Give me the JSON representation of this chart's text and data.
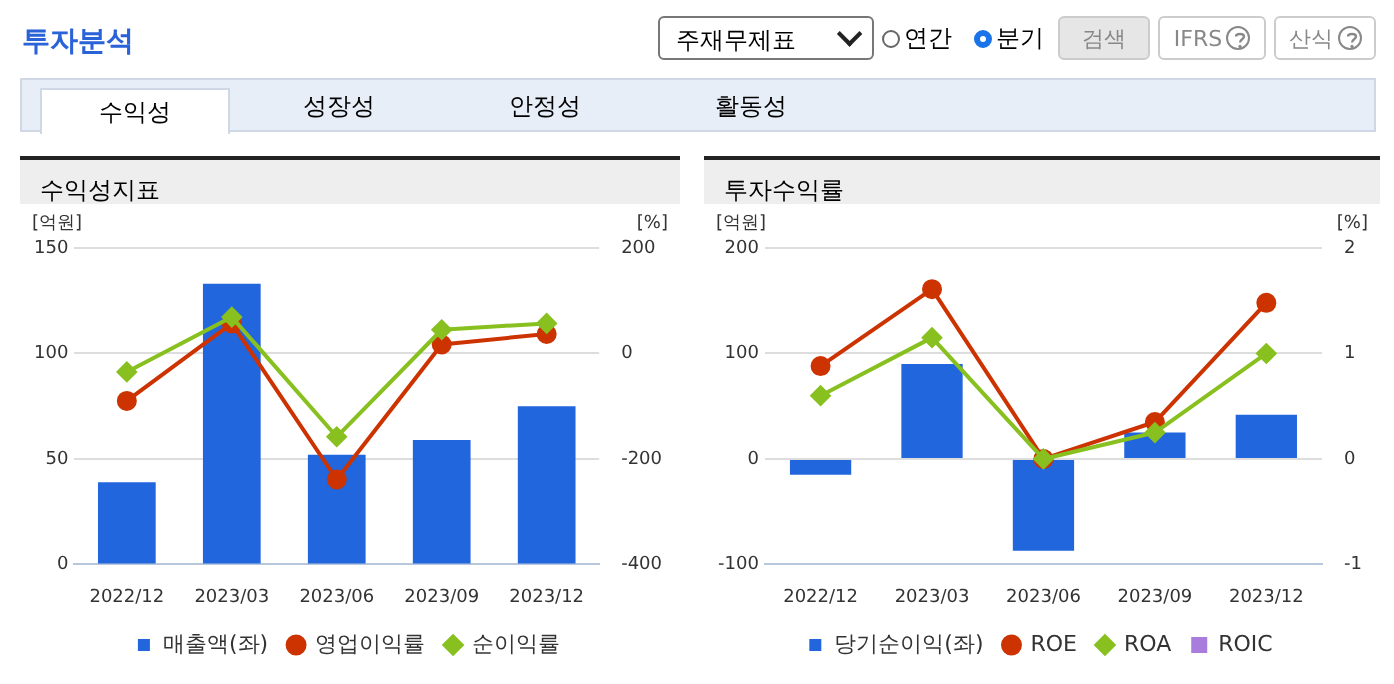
{
  "chart_data": [
    {
      "type": "other",
      "title": "투자분석",
      "annotations": [
        "주재무제표",
        "연간",
        "분기",
        "검색",
        "IFRS",
        "산식",
        "수익성",
        "성장성",
        "안정성",
        "활동성"
      ]
    },
    {
      "type": "bar",
      "title": "수익성지표",
      "ylabel": "[억원]",
      "y2label": "[%]",
      "categories": [
        "2022/12",
        "2023/03",
        "2023/06",
        "2023/09",
        "2023/12"
      ],
      "ylim": [
        0,
        150
      ],
      "yticks": [
        0,
        50,
        100,
        150
      ],
      "y2lim": [
        -400,
        200
      ],
      "y2ticks": [
        -400,
        -200,
        0,
        200
      ],
      "grid": "y",
      "legend": "bottom",
      "series": [
        {
          "name": "매출액(좌)",
          "type": "bar",
          "color": "#2266dd",
          "values": [
            39,
            133,
            52,
            59,
            75
          ]
        },
        {
          "name": "영업이익률",
          "type": "line",
          "axis": "y2",
          "marker": "circle",
          "color": "#cc3300",
          "values": [
            -90,
            57,
            -239,
            17,
            37
          ]
        },
        {
          "name": "순이익률",
          "type": "line",
          "axis": "y2",
          "marker": "diamond",
          "color": "#88c020",
          "values": [
            -35,
            69,
            -158,
            45,
            57
          ]
        }
      ]
    },
    {
      "type": "bar",
      "title": "투자수익률",
      "ylabel": "[억원]",
      "y2label": "[%]",
      "categories": [
        "2022/12",
        "2023/03",
        "2023/06",
        "2023/09",
        "2023/12"
      ],
      "ylim": [
        -100,
        200
      ],
      "yticks": [
        -100,
        0,
        100,
        200
      ],
      "y2lim": [
        -1,
        2
      ],
      "y2ticks": [
        -1,
        0,
        1,
        2
      ],
      "grid": "y",
      "legend": "bottom",
      "series": [
        {
          "name": "당기순이익(좌)",
          "type": "bar",
          "color": "#2266dd",
          "values": [
            -15,
            90,
            -87,
            25,
            42
          ]
        },
        {
          "name": "ROE",
          "type": "line",
          "axis": "y2",
          "marker": "circle",
          "color": "#cc3300",
          "values": [
            0.88,
            1.61,
            0,
            0.35,
            1.48
          ]
        },
        {
          "name": "ROA",
          "type": "line",
          "axis": "y2",
          "marker": "diamond",
          "color": "#88c020",
          "values": [
            0.6,
            1.15,
            0,
            0.25,
            1.0
          ]
        },
        {
          "name": "ROIC",
          "type": "line",
          "axis": "y2",
          "marker": "square",
          "color": "#a87ddc",
          "values": [
            null,
            null,
            null,
            null,
            null
          ]
        }
      ]
    }
  ]
}
